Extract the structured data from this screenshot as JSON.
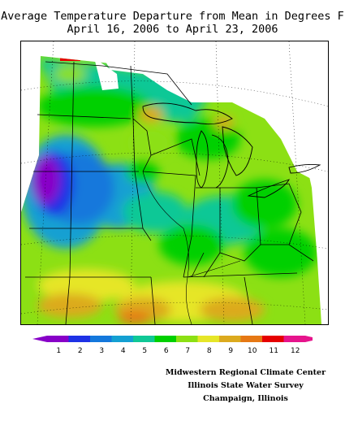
{
  "title_line1": "Average Temperature Departure from Mean in Degrees F",
  "title_line2": "April 16, 2006 to April 23, 2006",
  "legend": {
    "labels": [
      "1",
      "2",
      "3",
      "4",
      "5",
      "6",
      "7",
      "8",
      "9",
      "10",
      "11",
      "12"
    ],
    "colors": [
      "#8800c8",
      "#1e32e6",
      "#1478dc",
      "#14a0d2",
      "#10c896",
      "#00d000",
      "#8ce014",
      "#e6e628",
      "#dcaa1e",
      "#e67814",
      "#e60000",
      "#e6148c"
    ]
  },
  "credits": [
    "Midwestern Regional Climate Center",
    "Illinois State Water Survey",
    "Champaign, Illinois"
  ]
}
